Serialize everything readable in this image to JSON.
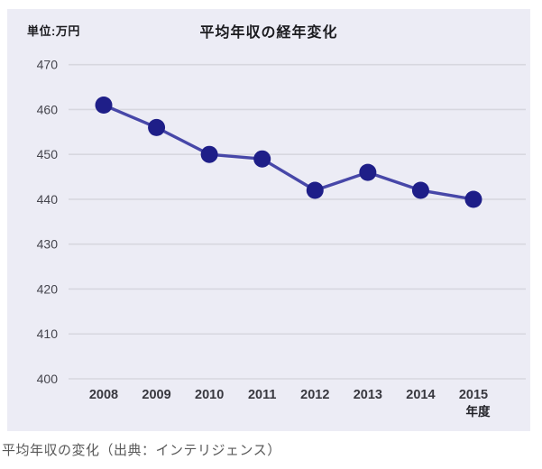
{
  "caption": "平均年収の変化（出典：インテリジェンス）",
  "chart_data": {
    "type": "line",
    "title": "平均年収の経年変化",
    "unit_label": "単位:万円",
    "x_axis_suffix_label": "年度",
    "categories": [
      "2008",
      "2009",
      "2010",
      "2011",
      "2012",
      "2013",
      "2014",
      "2015"
    ],
    "series": [
      {
        "name": "平均年収",
        "values": [
          461,
          456,
          450,
          449,
          442,
          446,
          442,
          440
        ]
      }
    ],
    "ylim": [
      400,
      470
    ],
    "ytick_step": 10,
    "grid": true,
    "legend": "none",
    "colors": {
      "plot_bg": "#ececf5",
      "grid": "#d7d7df",
      "line": "#4747a8",
      "point": "#1e1e88",
      "y_tick_text": "#45454d",
      "x_tick_text": "#38383f",
      "title_text": "#1b1b1f",
      "caption_text": "#595959"
    }
  }
}
